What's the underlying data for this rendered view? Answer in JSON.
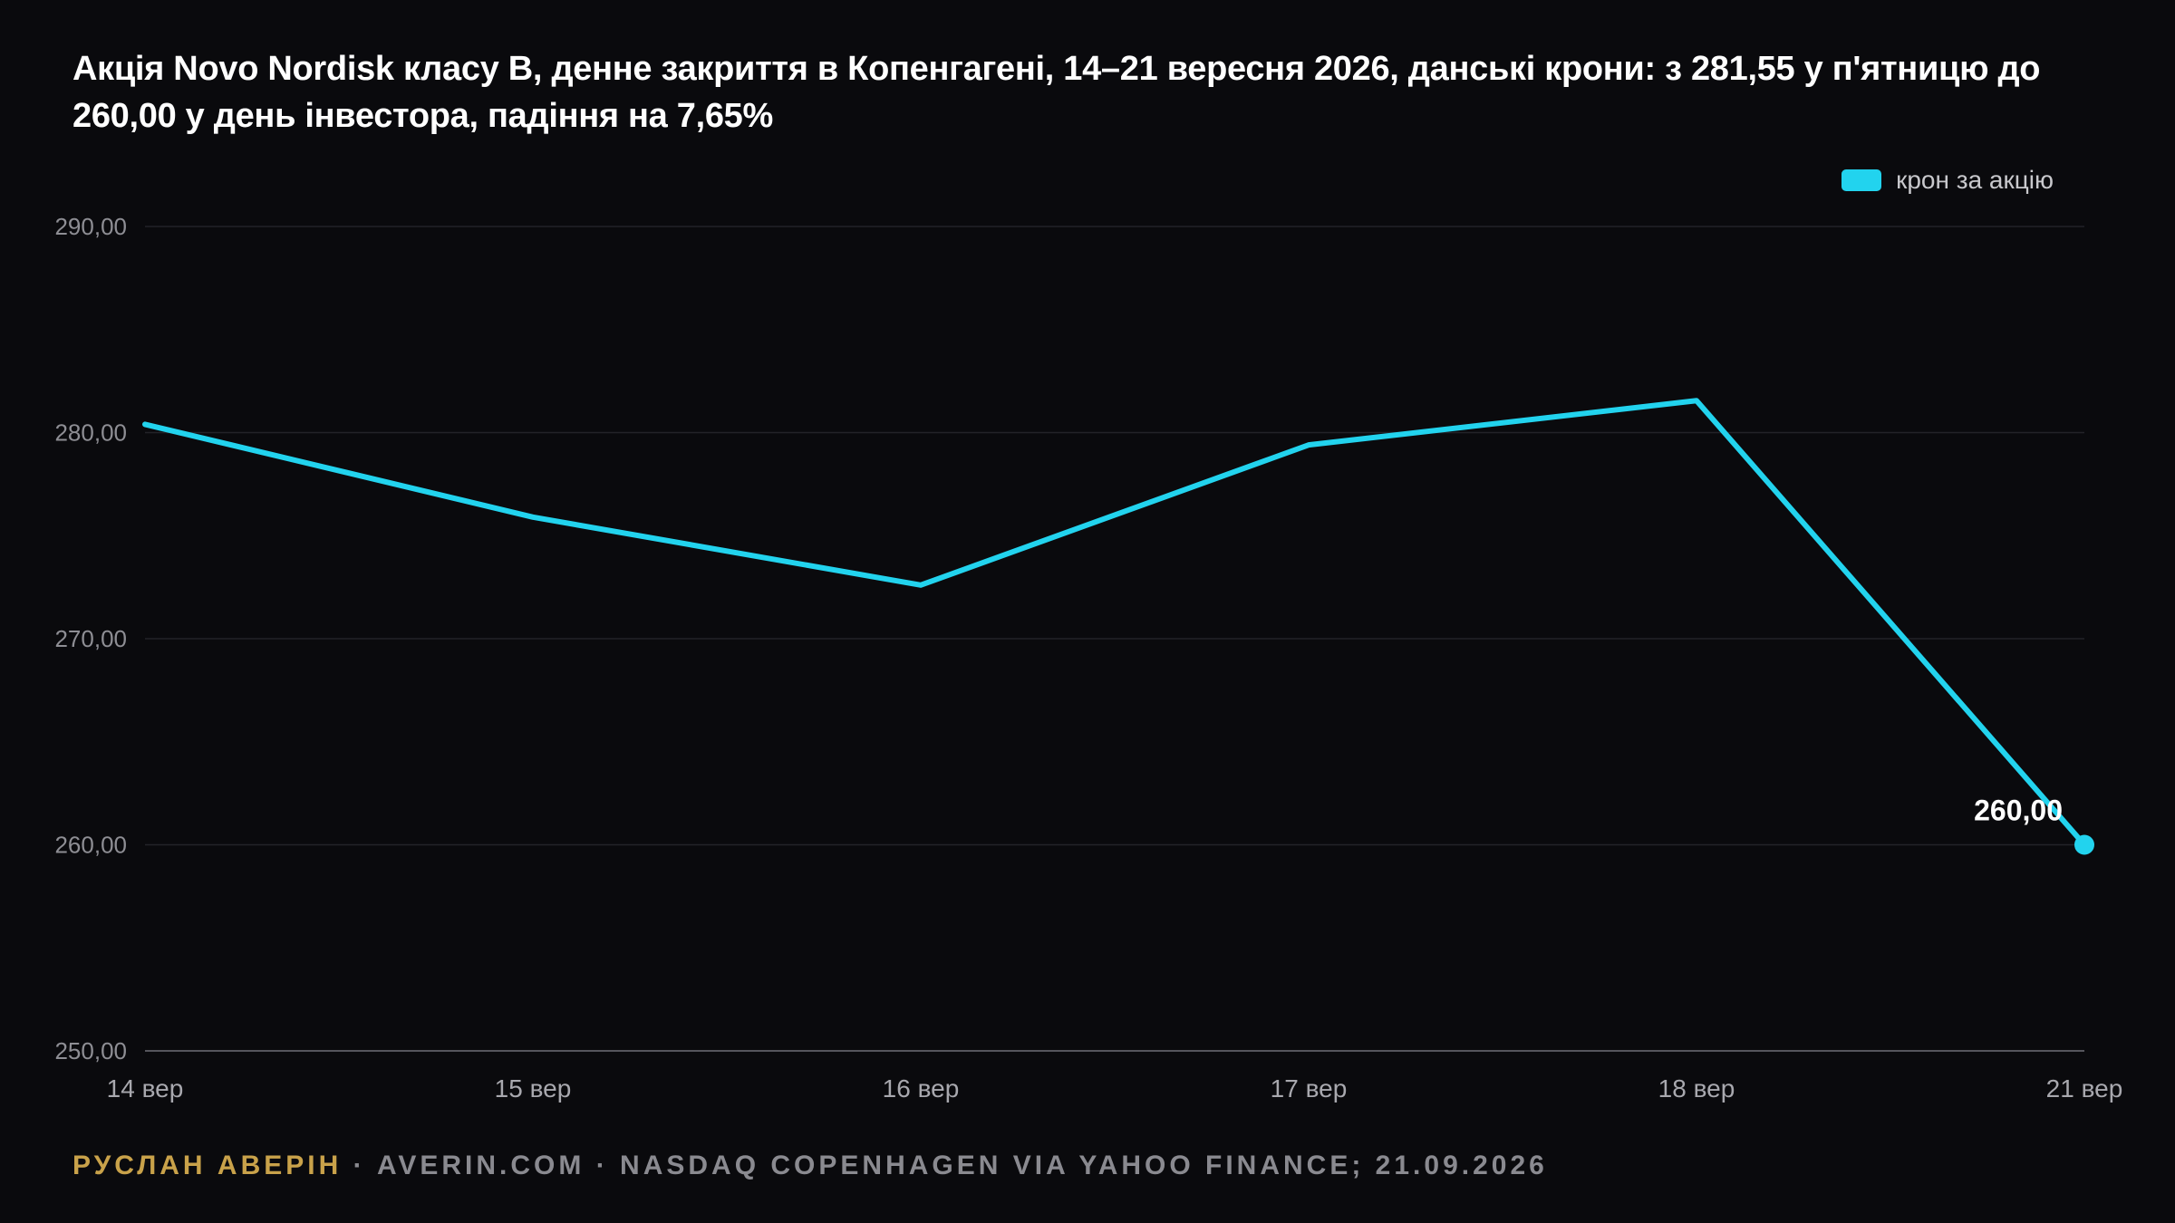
{
  "title": "Акція Novo Nordisk класу B, денне закриття в Копенгагені, 14–21 вересня 2026, данські крони: з 281,55 у п'ятницю до 260,00 у день інвестора, падіння на 7,65%",
  "legend": {
    "label": "крон за акцію",
    "color": "#22d3ee"
  },
  "footer": {
    "author": "РУСЛАН АВЕРІН",
    "separator": " · ",
    "rest": "AVERIN.COM · NASDAQ COPENHAGEN VIA YAHOO FINANCE; 21.09.2026"
  },
  "chart_data": {
    "type": "line",
    "title": "Акція Novo Nordisk класу B, денне закриття в Копенгагені, 14–21 вересня 2026, данські крони: з 281,55 у п'ятницю до 260,00 у день інвестора, падіння на 7,65%",
    "categories": [
      "14 вер",
      "15 вер",
      "16 вер",
      "17 вер",
      "18 вер",
      "21 вер"
    ],
    "series": [
      {
        "name": "крон за акцію",
        "color": "#22d3ee",
        "values": [
          280.4,
          275.9,
          272.6,
          279.4,
          281.55,
          260.0
        ]
      }
    ],
    "yticks": [
      "250,00",
      "260,00",
      "270,00",
      "280,00",
      "290,00"
    ],
    "ylim": [
      250,
      290
    ],
    "grid": true,
    "legend_position": "top-right",
    "annotations": [
      {
        "label": "260,00",
        "point": "21 вер"
      }
    ]
  }
}
